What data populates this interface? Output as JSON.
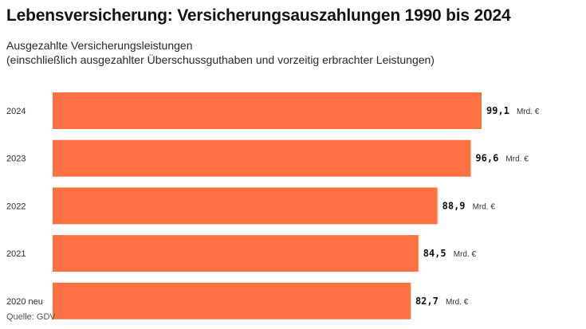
{
  "header": {
    "title": "Lebensversicherung: Versicherungsauszahlungen 1990 bis 2024",
    "subtitle_line1": "Ausgezahlte Versicherungsleistungen",
    "subtitle_line2": "(einschließlich ausgezahlter Überschussguthaben und vorzeitig erbrachter Leistungen)"
  },
  "footer": {
    "source": "Quelle: GDV"
  },
  "colors": {
    "bar": "#ff7043",
    "text": "#1a1a1a"
  },
  "chart_data": {
    "type": "bar",
    "orientation": "horizontal",
    "title": "Lebensversicherung: Versicherungsauszahlungen 1990 bis 2024",
    "subtitle": "Ausgezahlte Versicherungsleistungen (einschließlich ausgezahlter Überschussguthaben und vorzeitig erbrachter Leistungen)",
    "categories": [
      "2024",
      "2023",
      "2022",
      "2021",
      "2020 neu"
    ],
    "values": [
      99.1,
      96.6,
      88.9,
      84.5,
      82.7
    ],
    "value_labels": [
      "99,1",
      "96,6",
      "88,9",
      "84,5",
      "82,7"
    ],
    "unit": "Mrd. €",
    "xlim": [
      0,
      99.1
    ],
    "grid": false,
    "legend": "none"
  }
}
